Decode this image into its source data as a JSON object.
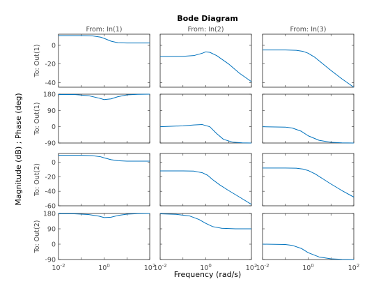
{
  "chart_data": {
    "type": "line",
    "title": "Bode Diagram",
    "xlabel": "Frequency  (rad/s)",
    "ylabel": "Magnitude (dB) ; Phase (deg)",
    "x_scale": "log",
    "xlim": [
      0.01,
      100
    ],
    "x_ticks": [
      {
        "base": "10",
        "exp": "-2",
        "value": 0.01
      },
      {
        "base": "10",
        "exp": "0",
        "value": 1
      },
      {
        "base": "10",
        "exp": "2",
        "value": 100
      }
    ],
    "grid": false,
    "line_color": "#0072BD",
    "columns": [
      "From: In(1)",
      "From: In(2)",
      "From: In(3)"
    ],
    "rows": [
      {
        "label": "To: Out(1)",
        "kind": "magnitude",
        "ylim": [
          -45,
          12
        ],
        "y_ticks": [
          {
            "label": "0",
            "value": 0
          },
          {
            "label": "-20",
            "value": -20
          },
          {
            "label": "-40",
            "value": -40
          }
        ],
        "series": [
          {
            "x": [
              0.01,
              0.1,
              0.3,
              0.7,
              1,
              2,
              4,
              10,
              100
            ],
            "y": [
              10.5,
              10.5,
              10.2,
              8.8,
              7.5,
              4.5,
              2.8,
              2.5,
              2.5
            ]
          },
          {
            "x": [
              0.01,
              0.1,
              0.3,
              0.7,
              1,
              1.5,
              3,
              10,
              30,
              100
            ],
            "y": [
              -12,
              -11.8,
              -11,
              -8.5,
              -7,
              -7.5,
              -11,
              -20,
              -30,
              -39
            ]
          },
          {
            "x": [
              0.01,
              0.1,
              0.3,
              0.6,
              1,
              2,
              5,
              10,
              30,
              100
            ],
            "y": [
              -5,
              -5,
              -5.3,
              -6.5,
              -8.5,
              -13,
              -21,
              -27,
              -36,
              -45
            ]
          }
        ]
      },
      {
        "label": "To: Out(1)",
        "kind": "phase",
        "ylim": [
          -90,
          180
        ],
        "y_ticks": [
          {
            "label": "180",
            "value": 180
          },
          {
            "label": "90",
            "value": 90
          },
          {
            "label": "0",
            "value": 0
          },
          {
            "label": "-90",
            "value": -90
          }
        ],
        "series": [
          {
            "x": [
              0.01,
              0.05,
              0.2,
              0.6,
              1,
              2,
              4,
              10,
              30,
              100
            ],
            "y": [
              178,
              178,
              172,
              158,
              150,
              154,
              166,
              176,
              179,
              180
            ]
          },
          {
            "x": [
              0.01,
              0.1,
              0.3,
              0.7,
              1.5,
              3,
              6,
              15,
              40,
              100
            ],
            "y": [
              0,
              5,
              10,
              12,
              0,
              -38,
              -70,
              -85,
              -89,
              -90
            ]
          },
          {
            "x": [
              0.01,
              0.1,
              0.2,
              0.5,
              1,
              3,
              10,
              30,
              100
            ],
            "y": [
              0,
              -2,
              -7,
              -25,
              -50,
              -75,
              -86,
              -89,
              -90
            ]
          }
        ]
      },
      {
        "label": "To: Out(2)",
        "kind": "magnitude",
        "ylim": [
          -60,
          12
        ],
        "y_ticks": [
          {
            "label": "0",
            "value": 0
          },
          {
            "label": "-20",
            "value": -20
          },
          {
            "label": "-40",
            "value": -40
          },
          {
            "label": "-60",
            "value": -60
          }
        ],
        "series": [
          {
            "x": [
              0.01,
              0.1,
              0.3,
              0.7,
              1,
              2,
              4,
              10,
              100
            ],
            "y": [
              9.5,
              9.5,
              9,
              7.5,
              6,
              3.5,
              2,
              1.5,
              1.5
            ]
          },
          {
            "x": [
              0.01,
              0.1,
              0.3,
              0.7,
              1.2,
              2,
              4,
              10,
              30,
              100
            ],
            "y": [
              -12,
              -12,
              -12.3,
              -14.5,
              -18,
              -24,
              -31,
              -39,
              -48,
              -58
            ]
          },
          {
            "x": [
              0.01,
              0.1,
              0.3,
              0.6,
              1,
              2,
              5,
              10,
              30,
              100
            ],
            "y": [
              -8,
              -8,
              -8.3,
              -9.5,
              -11.5,
              -16,
              -24,
              -30,
              -39,
              -48
            ]
          }
        ]
      },
      {
        "label": "To: Out(2)",
        "kind": "phase",
        "ylim": [
          -90,
          180
        ],
        "y_ticks": [
          {
            "label": "180",
            "value": 180
          },
          {
            "label": "90",
            "value": 90
          },
          {
            "label": "0",
            "value": 0
          },
          {
            "label": "-90",
            "value": -90
          }
        ],
        "series": [
          {
            "x": [
              0.01,
              0.05,
              0.2,
              0.6,
              1,
              2,
              4,
              10,
              30,
              100
            ],
            "y": [
              178,
              178,
              174,
              164,
              156,
              158,
              168,
              176,
              179,
              180
            ]
          },
          {
            "x": [
              0.01,
              0.05,
              0.2,
              0.5,
              1,
              2,
              5,
              20,
              100
            ],
            "y": [
              178,
              175,
              165,
              145,
              122,
              103,
              93,
              90,
              90
            ]
          },
          {
            "x": [
              0.01,
              0.1,
              0.2,
              0.5,
              1,
              3,
              10,
              30,
              100
            ],
            "y": [
              0,
              -2,
              -7,
              -25,
              -50,
              -75,
              -86,
              -89,
              -90
            ]
          }
        ]
      }
    ]
  }
}
